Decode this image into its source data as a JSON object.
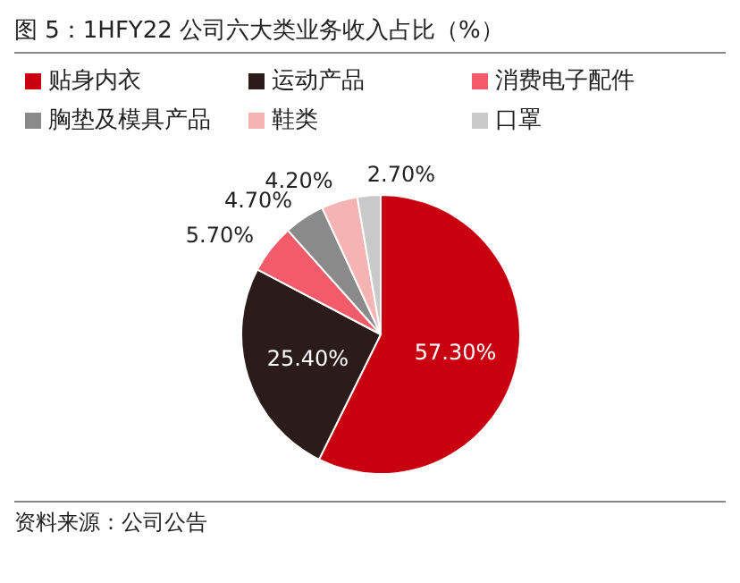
{
  "chart_data": {
    "type": "pie",
    "title": "图 5：1HFY22 公司六大类业务收入占比（%）",
    "categories": [
      "贴身内衣",
      "运动产品",
      "消费电子配件",
      "胸垫及模具产品",
      "鞋类",
      "口罩"
    ],
    "values": [
      57.3,
      25.4,
      5.7,
      4.7,
      4.2,
      2.7
    ],
    "value_labels": [
      "57.30%",
      "25.40%",
      "5.70%",
      "4.70%",
      "4.20%",
      "2.70%"
    ],
    "colors": [
      "#c8000f",
      "#2b1c19",
      "#f25c6a",
      "#8a8a8a",
      "#f5b3b3",
      "#c9c9c9"
    ],
    "legend": "top",
    "annotations": [
      "资料来源：公司公告"
    ]
  }
}
